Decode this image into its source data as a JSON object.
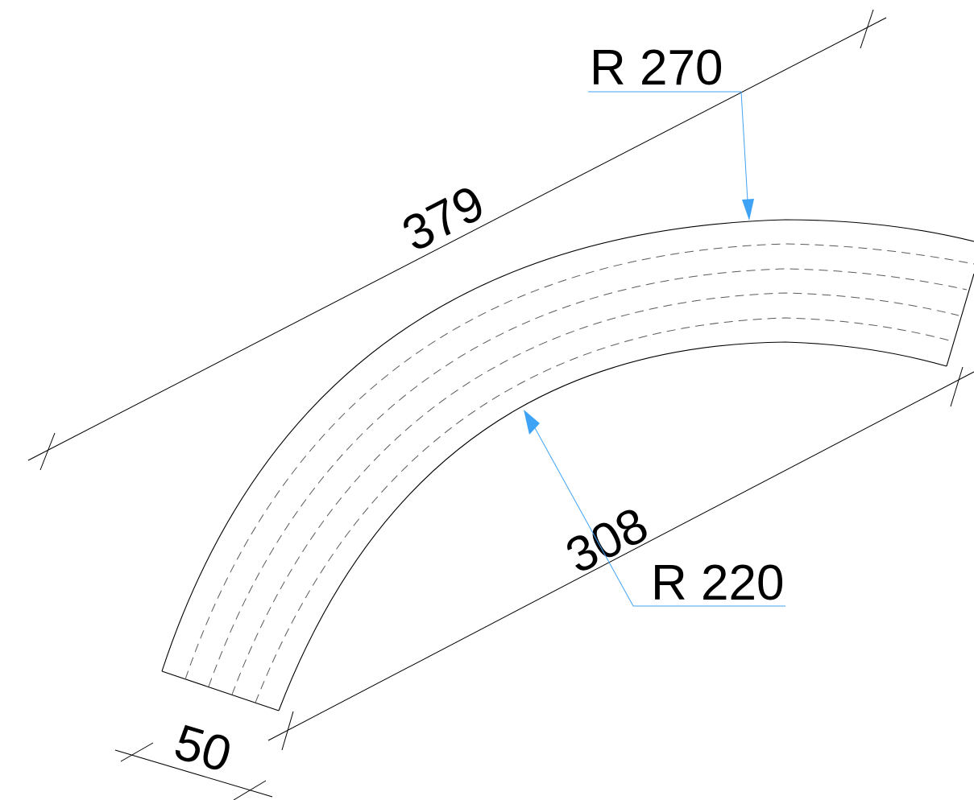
{
  "dimensions": {
    "outer_length": "379",
    "inner_length": "308",
    "width": "50",
    "outer_radius": "R 270",
    "inner_radius": "R 220"
  },
  "colors": {
    "outline": "#000000",
    "hidden_line": "#5a5a5a",
    "leader": "#3fa3f5",
    "background": "#ffffff"
  }
}
